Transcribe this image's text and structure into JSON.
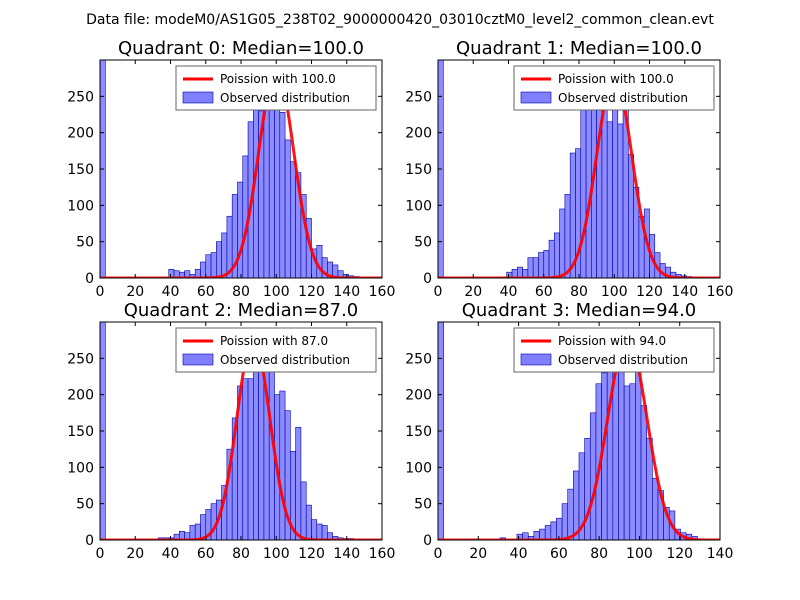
{
  "suptitle": "Data file: modeM0/AS1G05_238T02_9000000420_03010cztM0_level2_common_clean.evt",
  "colors": {
    "bar_fill": "#8080ff",
    "bar_edge": "#0000aa",
    "line": "#ff0000",
    "axes": "#000000",
    "legend_edge": "#666666"
  },
  "chart_data": [
    {
      "type": "bar",
      "title": "Quadrant 0: Median=100.0",
      "xlim": [
        0,
        160
      ],
      "ylim": [
        0,
        300
      ],
      "xticks": [
        "0",
        "20",
        "40",
        "60",
        "80",
        "100",
        "120",
        "140",
        "160"
      ],
      "yticks": [
        "0",
        "50",
        "100",
        "150",
        "200",
        "250"
      ],
      "legend": {
        "position": "top-right",
        "line_label": "Poission with 100.0",
        "bar_label": "Observed distribution"
      },
      "mean": 100.0,
      "peak": 285,
      "bin_start": 0,
      "bin_width": 3,
      "values": [
        300,
        0,
        0,
        0,
        0,
        0,
        0,
        0,
        0,
        0,
        0,
        0,
        0,
        12,
        10,
        8,
        10,
        5,
        12,
        22,
        32,
        35,
        50,
        62,
        85,
        115,
        132,
        168,
        215,
        238,
        230,
        280,
        285,
        255,
        228,
        190,
        160,
        145,
        115,
        82,
        40,
        45,
        28,
        22,
        18,
        10,
        5,
        3,
        2
      ]
    },
    {
      "type": "bar",
      "title": "Quadrant 1: Median=100.0",
      "xlim": [
        0,
        160
      ],
      "ylim": [
        0,
        300
      ],
      "xticks": [
        "0",
        "20",
        "40",
        "60",
        "80",
        "100",
        "120",
        "140",
        "160"
      ],
      "yticks": [
        "0",
        "50",
        "100",
        "150",
        "200",
        "250"
      ],
      "legend": {
        "position": "top-right",
        "line_label": "Poission with 100.0",
        "bar_label": "Observed distribution"
      },
      "mean": 100.0,
      "peak": 278,
      "bin_start": 0,
      "bin_width": 3,
      "values": [
        300,
        0,
        0,
        0,
        0,
        0,
        0,
        0,
        0,
        0,
        0,
        0,
        0,
        8,
        12,
        15,
        12,
        28,
        28,
        35,
        38,
        52,
        62,
        95,
        115,
        172,
        178,
        235,
        250,
        282,
        278,
        262,
        215,
        235,
        212,
        232,
        170,
        125,
        85,
        95,
        60,
        35,
        20,
        15,
        8,
        5,
        3,
        2
      ]
    },
    {
      "type": "bar",
      "title": "Quadrant 2: Median=87.0",
      "xlim": [
        0,
        160
      ],
      "ylim": [
        0,
        300
      ],
      "xticks": [
        "0",
        "20",
        "40",
        "60",
        "80",
        "100",
        "120",
        "140",
        "160"
      ],
      "yticks": [
        "0",
        "50",
        "100",
        "150",
        "200",
        "250"
      ],
      "legend": {
        "position": "top-right",
        "line_label": "Poission with 87.0",
        "bar_label": "Observed distribution"
      },
      "mean": 87.0,
      "peak": 278,
      "bin_start": 0,
      "bin_width": 3,
      "values": [
        300,
        0,
        0,
        0,
        0,
        0,
        0,
        0,
        0,
        0,
        0,
        3,
        3,
        3,
        8,
        12,
        10,
        20,
        22,
        35,
        42,
        50,
        55,
        75,
        125,
        168,
        212,
        222,
        222,
        250,
        265,
        278,
        245,
        200,
        205,
        178,
        122,
        155,
        80,
        48,
        28,
        22,
        20,
        10,
        5,
        3,
        2,
        2
      ]
    },
    {
      "type": "bar",
      "title": "Quadrant 3: Median=94.0",
      "xlim": [
        0,
        140
      ],
      "ylim": [
        0,
        300
      ],
      "xticks": [
        "0",
        "20",
        "40",
        "60",
        "80",
        "100",
        "120",
        "140"
      ],
      "yticks": [
        "0",
        "50",
        "100",
        "150",
        "200",
        "250"
      ],
      "legend": {
        "position": "top-right",
        "line_label": "Poission with 94.0",
        "bar_label": "Observed distribution"
      },
      "mean": 94.0,
      "peak": 278,
      "bin_start": 0,
      "bin_width": 2.8,
      "values": [
        300,
        0,
        0,
        0,
        0,
        0,
        0,
        0,
        0,
        0,
        0,
        3,
        0,
        0,
        8,
        10,
        5,
        12,
        15,
        20,
        25,
        30,
        50,
        70,
        95,
        120,
        140,
        175,
        215,
        230,
        258,
        278,
        250,
        212,
        215,
        265,
        185,
        140,
        85,
        68,
        45,
        40,
        15,
        10,
        8,
        5
      ]
    }
  ]
}
